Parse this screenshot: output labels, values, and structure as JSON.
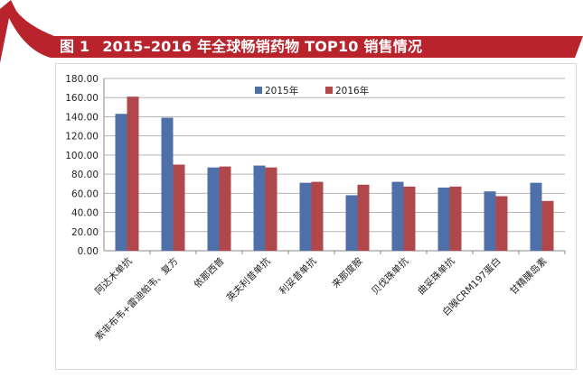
{
  "banner": {
    "figure_number": "图 1",
    "title": "2015–2016 年全球畅销药物 TOP10 销售情况",
    "color": "#b8232c"
  },
  "chart_data": {
    "type": "bar",
    "categories": [
      "阿达木单抗",
      "索非布韦+雷迪帕韦、复方",
      "依那西普",
      "英夫利昔单抗",
      "利妥昔单抗",
      "来那度胺",
      "贝伐珠单抗",
      "曲妥珠单抗",
      "白喉CRM197蛋白",
      "甘精胰岛素"
    ],
    "series": [
      {
        "name": "2015年",
        "color": "#4f6fa8",
        "values": [
          143,
          139,
          87,
          89,
          71,
          58,
          72,
          66,
          62,
          71
        ]
      },
      {
        "name": "2016年",
        "color": "#b0474b",
        "values": [
          161,
          90,
          88,
          87,
          72,
          69,
          67,
          67,
          57,
          52
        ]
      }
    ],
    "ylim": [
      0,
      180
    ],
    "yticks": [
      "0.00",
      "20.00",
      "40.00",
      "60.00",
      "80.00",
      "100.00",
      "120.00",
      "140.00",
      "160.00",
      "180.00"
    ],
    "grid": true,
    "legend_position": "top-center"
  }
}
